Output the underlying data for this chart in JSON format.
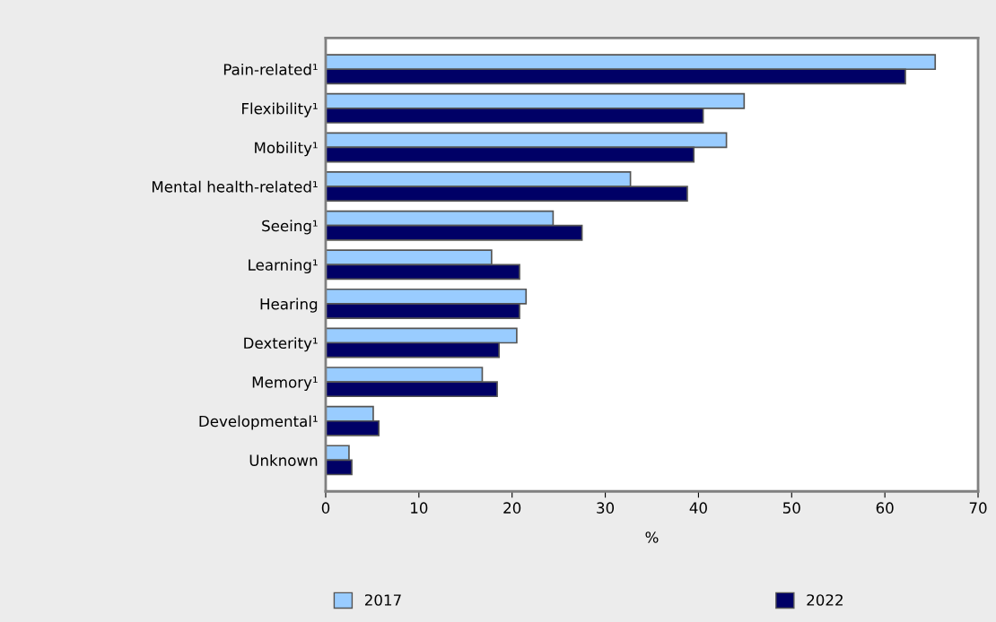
{
  "chart_data": {
    "type": "bar",
    "orientation": "horizontal",
    "categories": [
      "Pain-related¹",
      "Flexibility¹",
      "Mobility¹",
      "Mental health-related¹",
      "Seeing¹",
      "Learning¹",
      "Hearing",
      "Dexterity¹",
      "Memory¹",
      "Developmental¹",
      "Unknown"
    ],
    "series": [
      {
        "name": "2017",
        "color": "#99ccff",
        "values": [
          65.4,
          44.9,
          43.0,
          32.7,
          24.4,
          17.8,
          21.5,
          20.5,
          16.8,
          5.1,
          2.5
        ]
      },
      {
        "name": "2022",
        "color": "#000066",
        "values": [
          62.2,
          40.5,
          39.5,
          38.8,
          27.5,
          20.8,
          20.8,
          18.6,
          18.4,
          5.7,
          2.8
        ]
      }
    ],
    "xlabel": "%",
    "xlim": [
      0,
      70
    ],
    "xticks": [
      0,
      10,
      20,
      30,
      40,
      50,
      60,
      70
    ],
    "grid": false,
    "legend": "bottom"
  }
}
